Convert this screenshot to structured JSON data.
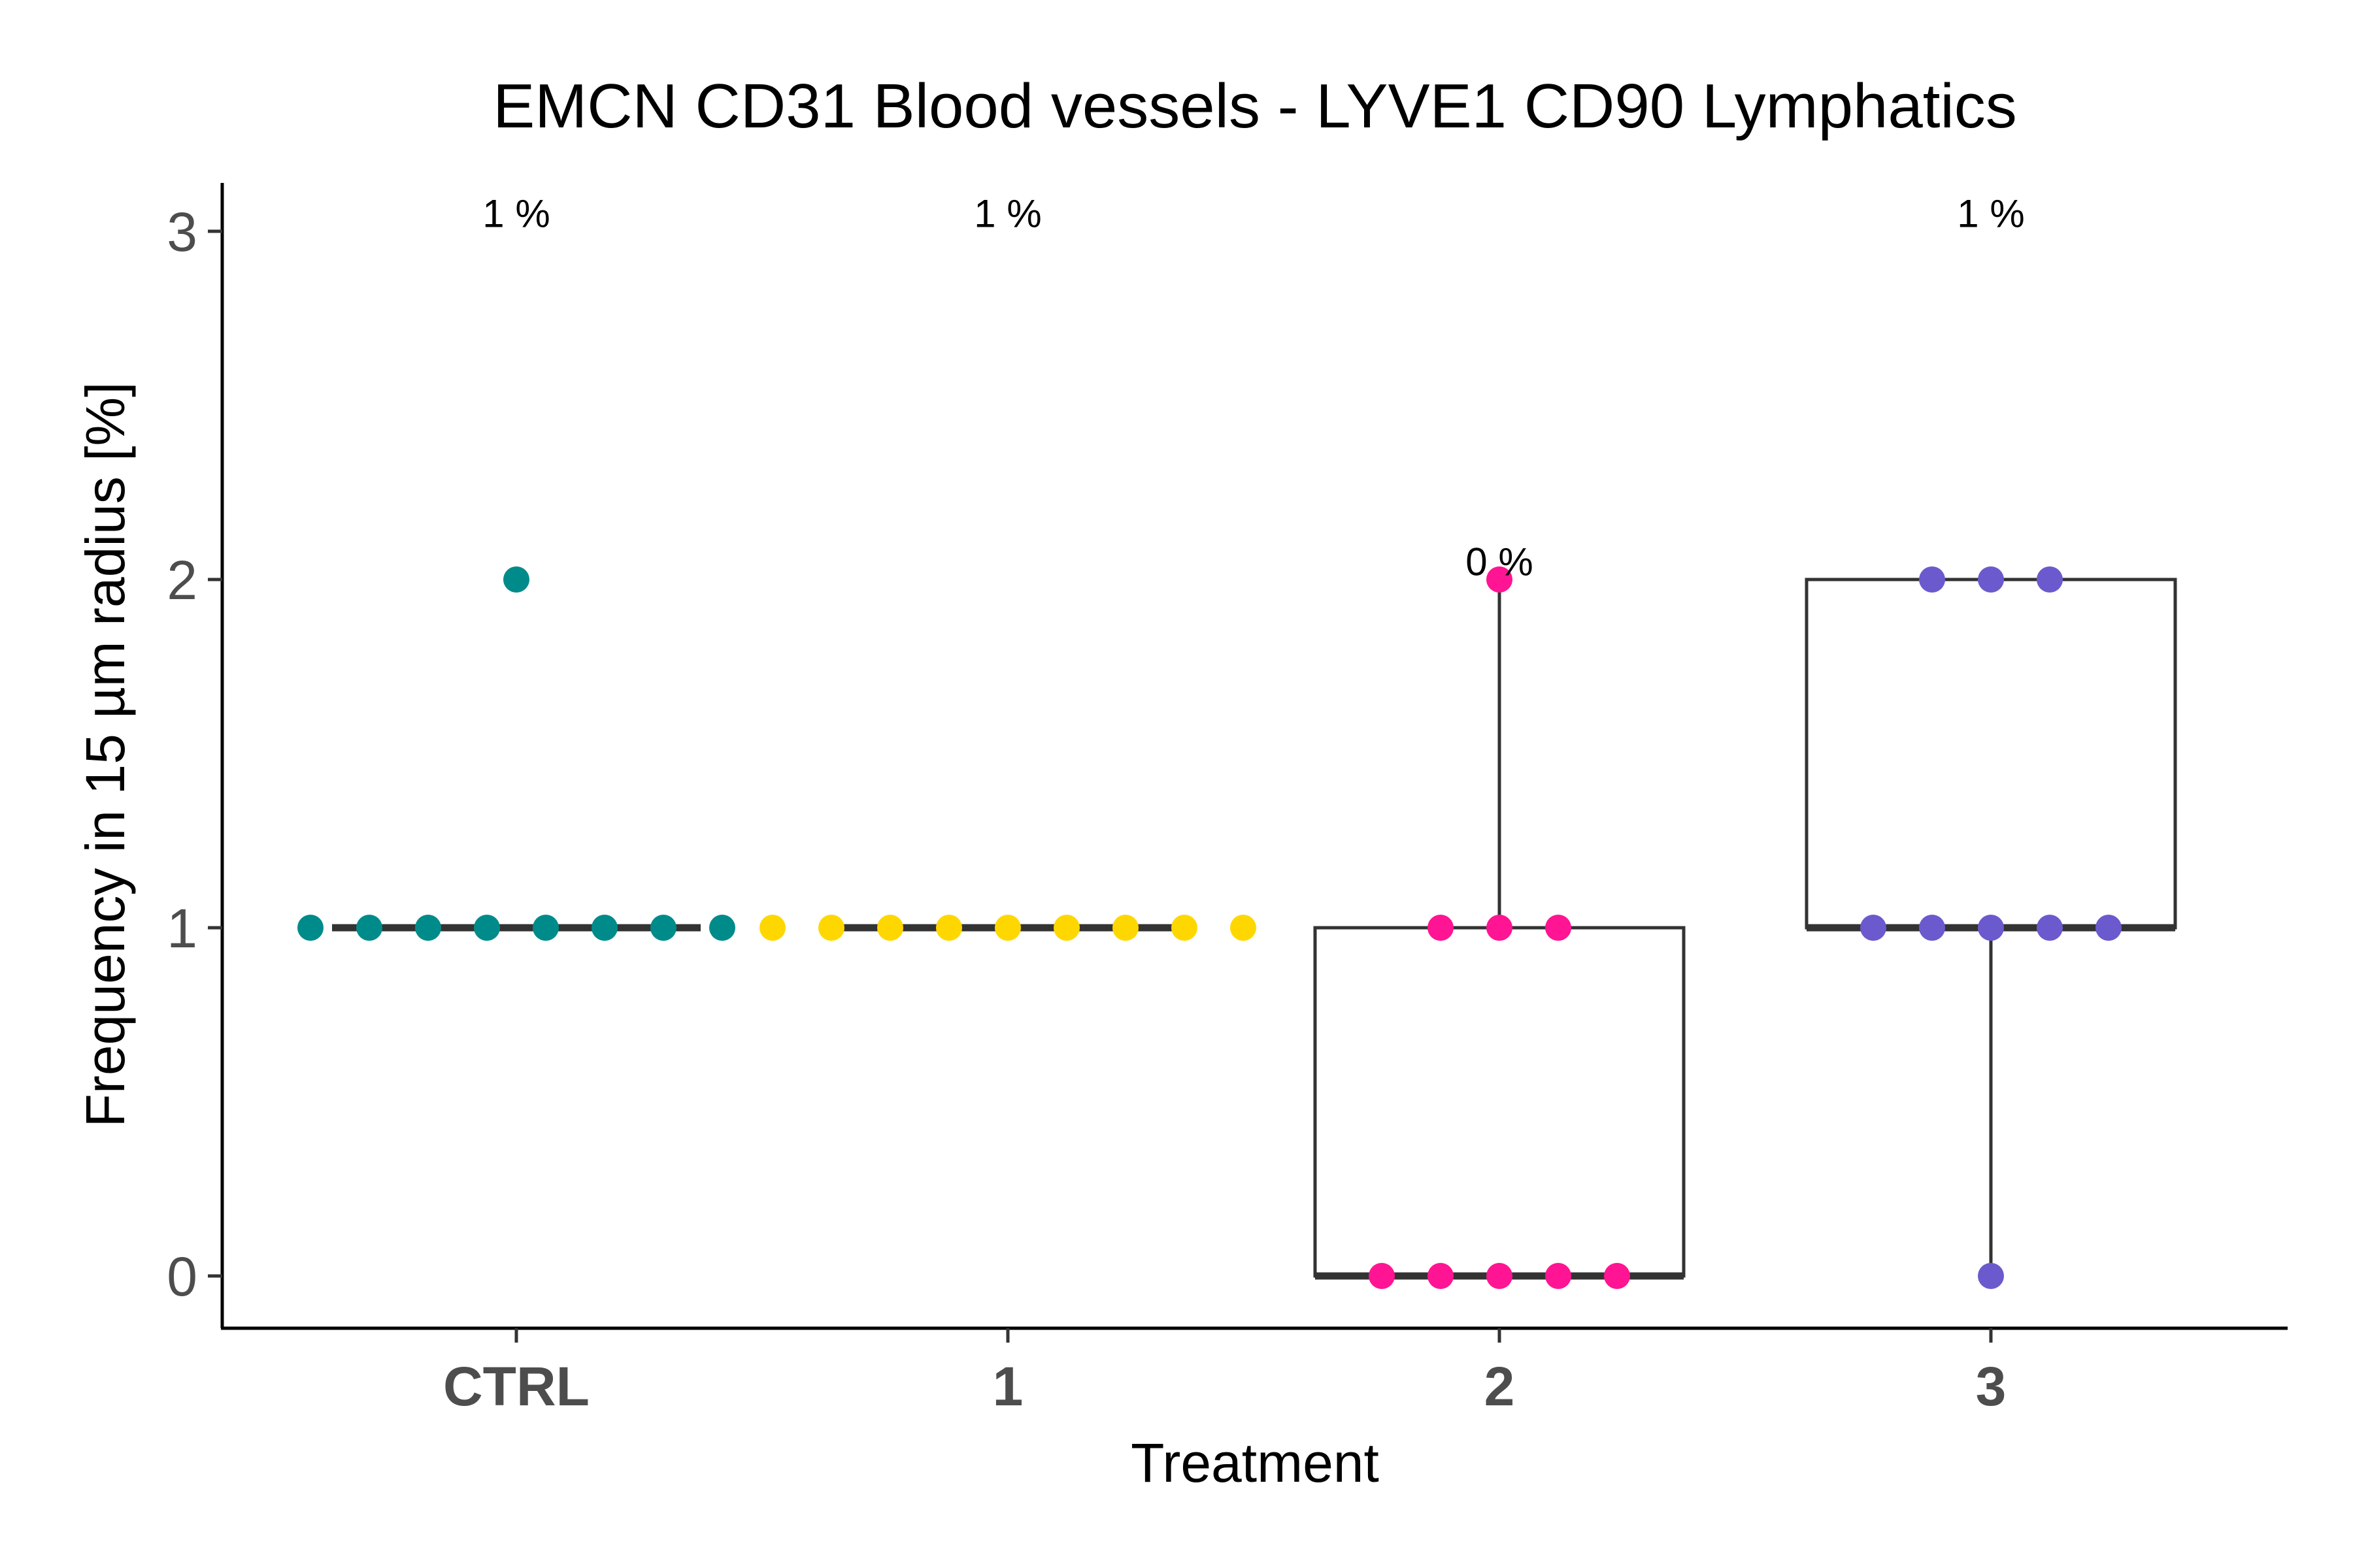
{
  "chart_data": {
    "type": "boxplot",
    "title": "EMCN CD31 Blood vessels - LYVE1 CD90 Lymphatics",
    "xlabel": "Treatment",
    "ylabel": "Frequency in 15 µm radius [%]",
    "ylim": [
      -0.15,
      3.15
    ],
    "yticks": [
      0,
      1,
      2,
      3
    ],
    "categories": [
      "CTRL",
      "1",
      "2",
      "3"
    ],
    "grid": false,
    "legend": "none",
    "groups": [
      {
        "name": "CTRL",
        "color": "#008b8b",
        "points": [
          1,
          1,
          1,
          1,
          1,
          1,
          1,
          1,
          2
        ],
        "box": {
          "q1": 1,
          "median": 1,
          "q3": 1,
          "whisker_low": 1,
          "whisker_high": 1
        },
        "label": "1 %",
        "label_y": 3.05
      },
      {
        "name": "1",
        "color": "#ffd700",
        "points": [
          1,
          1,
          1,
          1,
          1,
          1,
          1,
          1,
          1
        ],
        "box": {
          "q1": 1,
          "median": 1,
          "q3": 1,
          "whisker_low": 1,
          "whisker_high": 1
        },
        "label": "1 %",
        "label_y": 3.05
      },
      {
        "name": "2",
        "color": "#ff1493",
        "points": [
          0,
          0,
          0,
          0,
          0,
          1,
          1,
          1,
          2
        ],
        "box": {
          "q1": 0,
          "median": 0,
          "q3": 1,
          "whisker_low": 0,
          "whisker_high": 2
        },
        "label": "0 %",
        "label_y": 2.05
      },
      {
        "name": "3",
        "color": "#6a5acd",
        "points": [
          0,
          1,
          1,
          1,
          1,
          1,
          2,
          2,
          2
        ],
        "box": {
          "q1": 1,
          "median": 1,
          "q3": 2,
          "whisker_low": 0,
          "whisker_high": 2
        },
        "label": "1 %",
        "label_y": 3.05
      }
    ]
  }
}
